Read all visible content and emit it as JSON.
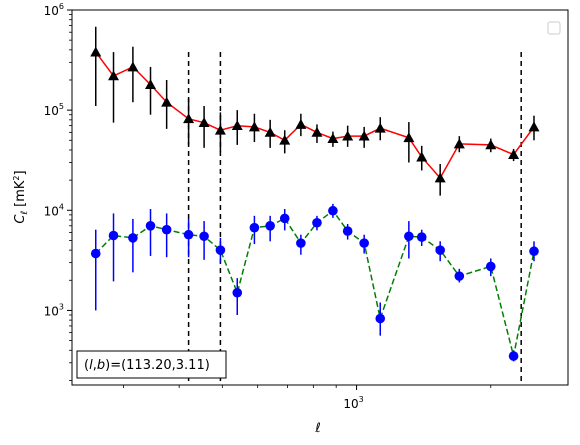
{
  "chart_data": {
    "type": "line",
    "xscale": "log",
    "yscale": "log",
    "xlim": [
      230,
      2980
    ],
    "ylim": [
      180,
      1000000
    ],
    "xlabel": "ℓ",
    "ylabel_main": "C",
    "ylabel_sub": "ℓ",
    "ylabel_unit_open": "[mK",
    "ylabel_unit_sup": "2",
    "ylabel_unit_close": "]",
    "x_tick_labels": [
      {
        "value": 1000,
        "base": "10",
        "exp": "3"
      }
    ],
    "y_tick_labels": [
      {
        "value": 1000,
        "base": "10",
        "exp": "3"
      },
      {
        "value": 10000,
        "base": "10",
        "exp": "4"
      },
      {
        "value": 100000,
        "base": "10",
        "exp": "5"
      },
      {
        "value": 1000000,
        "base": "10",
        "exp": "6"
      }
    ],
    "vlines": [
      420,
      495,
      2340
    ],
    "annotation": "(l, b)=(113.20, 3.11)",
    "annotation_parts": {
      "l": "l",
      "b": "b",
      "value": "=(113.20,3.11)"
    },
    "legend": "top-right (empty)",
    "series": [
      {
        "marker": "triangle",
        "color": "#ff0000",
        "marker_color": "#000000",
        "errorbar_color": "#000000",
        "linestyle": "solid",
        "points": [
          {
            "x": 260,
            "y": 380000,
            "lo": 110000,
            "hi": 680000
          },
          {
            "x": 285,
            "y": 220000,
            "lo": 75000,
            "hi": 380000
          },
          {
            "x": 315,
            "y": 270000,
            "lo": 120000,
            "hi": 430000
          },
          {
            "x": 345,
            "y": 180000,
            "lo": 90000,
            "hi": 270000
          },
          {
            "x": 375,
            "y": 120000,
            "lo": 65000,
            "hi": 200000
          },
          {
            "x": 420,
            "y": 82000,
            "lo": 45000,
            "hi": 130000
          },
          {
            "x": 455,
            "y": 75000,
            "lo": 42000,
            "hi": 110000
          },
          {
            "x": 495,
            "y": 63000,
            "lo": 38000,
            "hi": 95000
          },
          {
            "x": 540,
            "y": 70000,
            "lo": 45000,
            "hi": 100000
          },
          {
            "x": 590,
            "y": 68000,
            "lo": 48000,
            "hi": 92000
          },
          {
            "x": 640,
            "y": 60000,
            "lo": 42000,
            "hi": 80000
          },
          {
            "x": 690,
            "y": 50000,
            "lo": 37000,
            "hi": 63000
          },
          {
            "x": 750,
            "y": 72000,
            "lo": 55000,
            "hi": 92000
          },
          {
            "x": 815,
            "y": 60000,
            "lo": 47000,
            "hi": 72000
          },
          {
            "x": 885,
            "y": 52000,
            "lo": 43000,
            "hi": 61000
          },
          {
            "x": 955,
            "y": 55000,
            "lo": 43000,
            "hi": 70000
          },
          {
            "x": 1040,
            "y": 55000,
            "lo": 42000,
            "hi": 68000
          },
          {
            "x": 1130,
            "y": 66000,
            "lo": 50000,
            "hi": 85000
          },
          {
            "x": 1310,
            "y": 53000,
            "lo": 30000,
            "hi": 76000
          },
          {
            "x": 1400,
            "y": 34000,
            "lo": 25000,
            "hi": 44000
          },
          {
            "x": 1540,
            "y": 21000,
            "lo": 14000,
            "hi": 29000
          },
          {
            "x": 1700,
            "y": 46000,
            "lo": 38000,
            "hi": 55000
          },
          {
            "x": 2000,
            "y": 45000,
            "lo": 38000,
            "hi": 52000
          },
          {
            "x": 2250,
            "y": 36000,
            "lo": 31000,
            "hi": 41000
          },
          {
            "x": 2500,
            "y": 68000,
            "lo": 50000,
            "hi": 88000
          }
        ]
      },
      {
        "marker": "circle",
        "color": "#008000",
        "marker_color": "#0000ff",
        "errorbar_color": "#0000ff",
        "linestyle": "dashed",
        "points": [
          {
            "x": 260,
            "y": 3700,
            "lo": 1000,
            "hi": 6400
          },
          {
            "x": 285,
            "y": 5600,
            "lo": 1950,
            "hi": 9300
          },
          {
            "x": 315,
            "y": 5300,
            "lo": 2400,
            "hi": 8200
          },
          {
            "x": 345,
            "y": 7000,
            "lo": 3500,
            "hi": 10300
          },
          {
            "x": 375,
            "y": 6400,
            "lo": 3400,
            "hi": 9300
          },
          {
            "x": 420,
            "y": 5700,
            "lo": 3400,
            "hi": 8200
          },
          {
            "x": 455,
            "y": 5500,
            "lo": 3200,
            "hi": 7800
          },
          {
            "x": 495,
            "y": 4000,
            "lo": 3000,
            "hi": 5300
          },
          {
            "x": 540,
            "y": 1500,
            "lo": 900,
            "hi": 2100
          },
          {
            "x": 590,
            "y": 6700,
            "lo": 4600,
            "hi": 8800
          },
          {
            "x": 640,
            "y": 7000,
            "lo": 4900,
            "hi": 8800
          },
          {
            "x": 690,
            "y": 8300,
            "lo": 6300,
            "hi": 10300
          },
          {
            "x": 750,
            "y": 4700,
            "lo": 3600,
            "hi": 5700
          },
          {
            "x": 815,
            "y": 7500,
            "lo": 6300,
            "hi": 8800
          },
          {
            "x": 885,
            "y": 9900,
            "lo": 8400,
            "hi": 11600
          },
          {
            "x": 955,
            "y": 6200,
            "lo": 5100,
            "hi": 7300
          },
          {
            "x": 1040,
            "y": 4700,
            "lo": 3700,
            "hi": 5700
          },
          {
            "x": 1130,
            "y": 830,
            "lo": 560,
            "hi": 1200
          },
          {
            "x": 1310,
            "y": 5500,
            "lo": 3300,
            "hi": 7800
          },
          {
            "x": 1400,
            "y": 5400,
            "lo": 4400,
            "hi": 6400
          },
          {
            "x": 1540,
            "y": 4000,
            "lo": 3100,
            "hi": 4900
          },
          {
            "x": 1700,
            "y": 2200,
            "lo": 1900,
            "hi": 2600
          },
          {
            "x": 2000,
            "y": 2750,
            "lo": 2200,
            "hi": 3300
          },
          {
            "x": 2250,
            "y": 350,
            "lo": 310,
            "hi": 400
          },
          {
            "x": 2500,
            "y": 3900,
            "lo": 3100,
            "hi": 4900
          }
        ]
      }
    ]
  }
}
